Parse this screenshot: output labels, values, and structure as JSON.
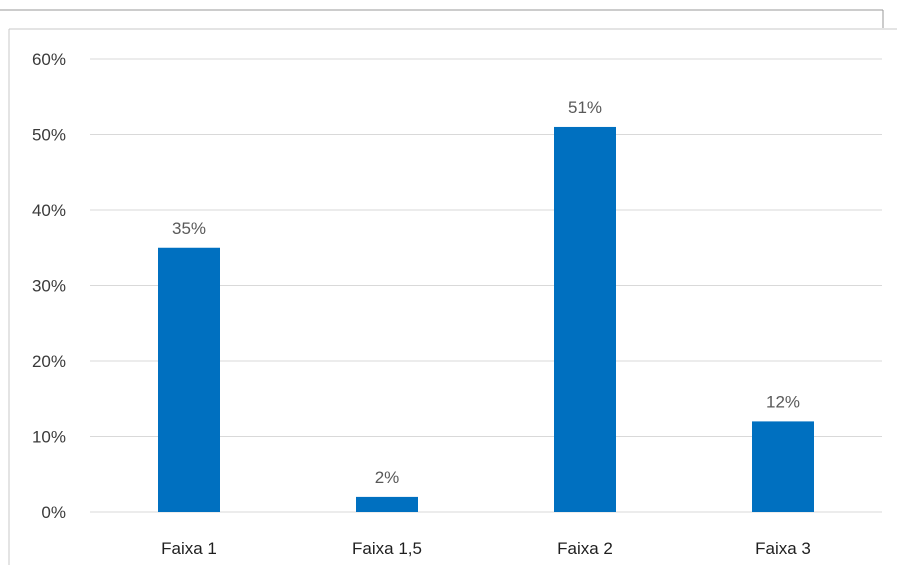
{
  "chart_data": {
    "type": "bar",
    "categories": [
      "Faixa 1",
      "Faixa 1,5",
      "Faixa 2",
      "Faixa 3"
    ],
    "values": [
      35,
      2,
      51,
      12
    ],
    "data_labels": [
      "35%",
      "2%",
      "51%",
      "12%"
    ],
    "ylim": [
      0,
      60
    ],
    "yticks": [
      0,
      10,
      20,
      30,
      40,
      50,
      60
    ],
    "ytick_labels": [
      "0%",
      "10%",
      "20%",
      "30%",
      "40%",
      "50%",
      "60%"
    ],
    "title": "",
    "xlabel": "",
    "ylabel": "",
    "grid": true,
    "legend": "none",
    "bar_color": "#0070c0",
    "grid_color": "#d9d9d9"
  }
}
